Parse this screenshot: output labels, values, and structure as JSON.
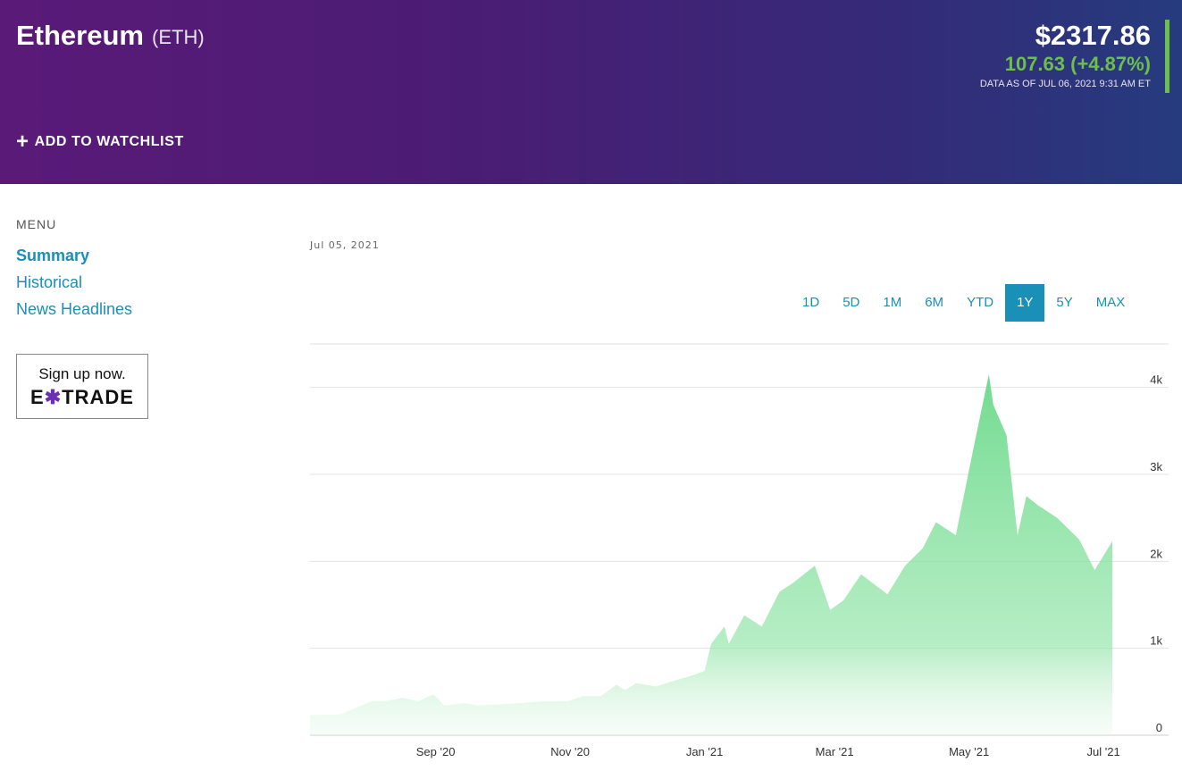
{
  "header": {
    "coin_name": "Ethereum",
    "coin_symbol": "(ETH)",
    "price": "$2317.86",
    "change": "107.63 (+4.87%)",
    "as_of": "DATA AS OF JUL 06, 2021 9:31 AM ET",
    "watchlist_label": "ADD TO WATCHLIST",
    "accent_color": "#6cc04a"
  },
  "menu": {
    "label": "MENU",
    "items": [
      {
        "label": "Summary",
        "active": true
      },
      {
        "label": "Historical",
        "active": false
      },
      {
        "label": "News Headlines",
        "active": false
      }
    ]
  },
  "ad": {
    "line1": "Sign up now.",
    "logo_left": "E",
    "logo_x": "✱",
    "logo_right": "TRADE"
  },
  "chart_header": {
    "date_label": "Jul 05, 2021"
  },
  "ranges": [
    {
      "label": "1D",
      "active": false
    },
    {
      "label": "5D",
      "active": false
    },
    {
      "label": "1M",
      "active": false
    },
    {
      "label": "6M",
      "active": false
    },
    {
      "label": "YTD",
      "active": false
    },
    {
      "label": "1Y",
      "active": true
    },
    {
      "label": "5Y",
      "active": false
    },
    {
      "label": "MAX",
      "active": false
    }
  ],
  "chart_data": {
    "type": "area",
    "title": "",
    "xlabel": "",
    "ylabel": "",
    "ylim": [
      0,
      4500
    ],
    "xlim": [
      "2020-07-06",
      "2021-07-05"
    ],
    "grid": true,
    "fill_color": "#6ad98a",
    "y_ticks": [
      {
        "value": 0,
        "label": "0"
      },
      {
        "value": 1000,
        "label": "1k"
      },
      {
        "value": 2000,
        "label": "2k"
      },
      {
        "value": 3000,
        "label": "3k"
      },
      {
        "value": 4000,
        "label": "4k"
      }
    ],
    "x_ticks": [
      {
        "date": "2020-09-01",
        "label": "Sep '20"
      },
      {
        "date": "2020-11-01",
        "label": "Nov '20"
      },
      {
        "date": "2021-01-01",
        "label": "Jan '21"
      },
      {
        "date": "2021-03-01",
        "label": "Mar '21"
      },
      {
        "date": "2021-05-01",
        "label": "May '21"
      },
      {
        "date": "2021-07-01",
        "label": "Jul '21"
      }
    ],
    "points": [
      [
        "2020-07-06",
        230
      ],
      [
        "2020-07-20",
        240
      ],
      [
        "2020-07-27",
        320
      ],
      [
        "2020-08-03",
        390
      ],
      [
        "2020-08-10",
        395
      ],
      [
        "2020-08-17",
        430
      ],
      [
        "2020-08-24",
        390
      ],
      [
        "2020-08-31",
        470
      ],
      [
        "2020-09-05",
        340
      ],
      [
        "2020-09-14",
        370
      ],
      [
        "2020-09-21",
        340
      ],
      [
        "2020-10-01",
        355
      ],
      [
        "2020-10-10",
        370
      ],
      [
        "2020-10-20",
        390
      ],
      [
        "2020-10-31",
        390
      ],
      [
        "2020-11-07",
        450
      ],
      [
        "2020-11-15",
        450
      ],
      [
        "2020-11-22",
        580
      ],
      [
        "2020-11-26",
        520
      ],
      [
        "2020-12-01",
        600
      ],
      [
        "2020-12-10",
        560
      ],
      [
        "2020-12-20",
        640
      ],
      [
        "2020-12-27",
        690
      ],
      [
        "2021-01-01",
        740
      ],
      [
        "2021-01-04",
        1050
      ],
      [
        "2021-01-10",
        1250
      ],
      [
        "2021-01-12",
        1050
      ],
      [
        "2021-01-19",
        1380
      ],
      [
        "2021-01-27",
        1250
      ],
      [
        "2021-02-04",
        1650
      ],
      [
        "2021-02-10",
        1750
      ],
      [
        "2021-02-20",
        1950
      ],
      [
        "2021-02-27",
        1440
      ],
      [
        "2021-03-05",
        1550
      ],
      [
        "2021-03-13",
        1850
      ],
      [
        "2021-03-25",
        1620
      ],
      [
        "2021-04-02",
        1950
      ],
      [
        "2021-04-10",
        2150
      ],
      [
        "2021-04-16",
        2450
      ],
      [
        "2021-04-25",
        2300
      ],
      [
        "2021-05-03",
        3300
      ],
      [
        "2021-05-10",
        4150
      ],
      [
        "2021-05-12",
        3800
      ],
      [
        "2021-05-18",
        3450
      ],
      [
        "2021-05-23",
        2300
      ],
      [
        "2021-05-27",
        2750
      ],
      [
        "2021-06-01",
        2650
      ],
      [
        "2021-06-10",
        2500
      ],
      [
        "2021-06-20",
        2250
      ],
      [
        "2021-06-27",
        1900
      ],
      [
        "2021-07-05",
        2230
      ]
    ]
  }
}
